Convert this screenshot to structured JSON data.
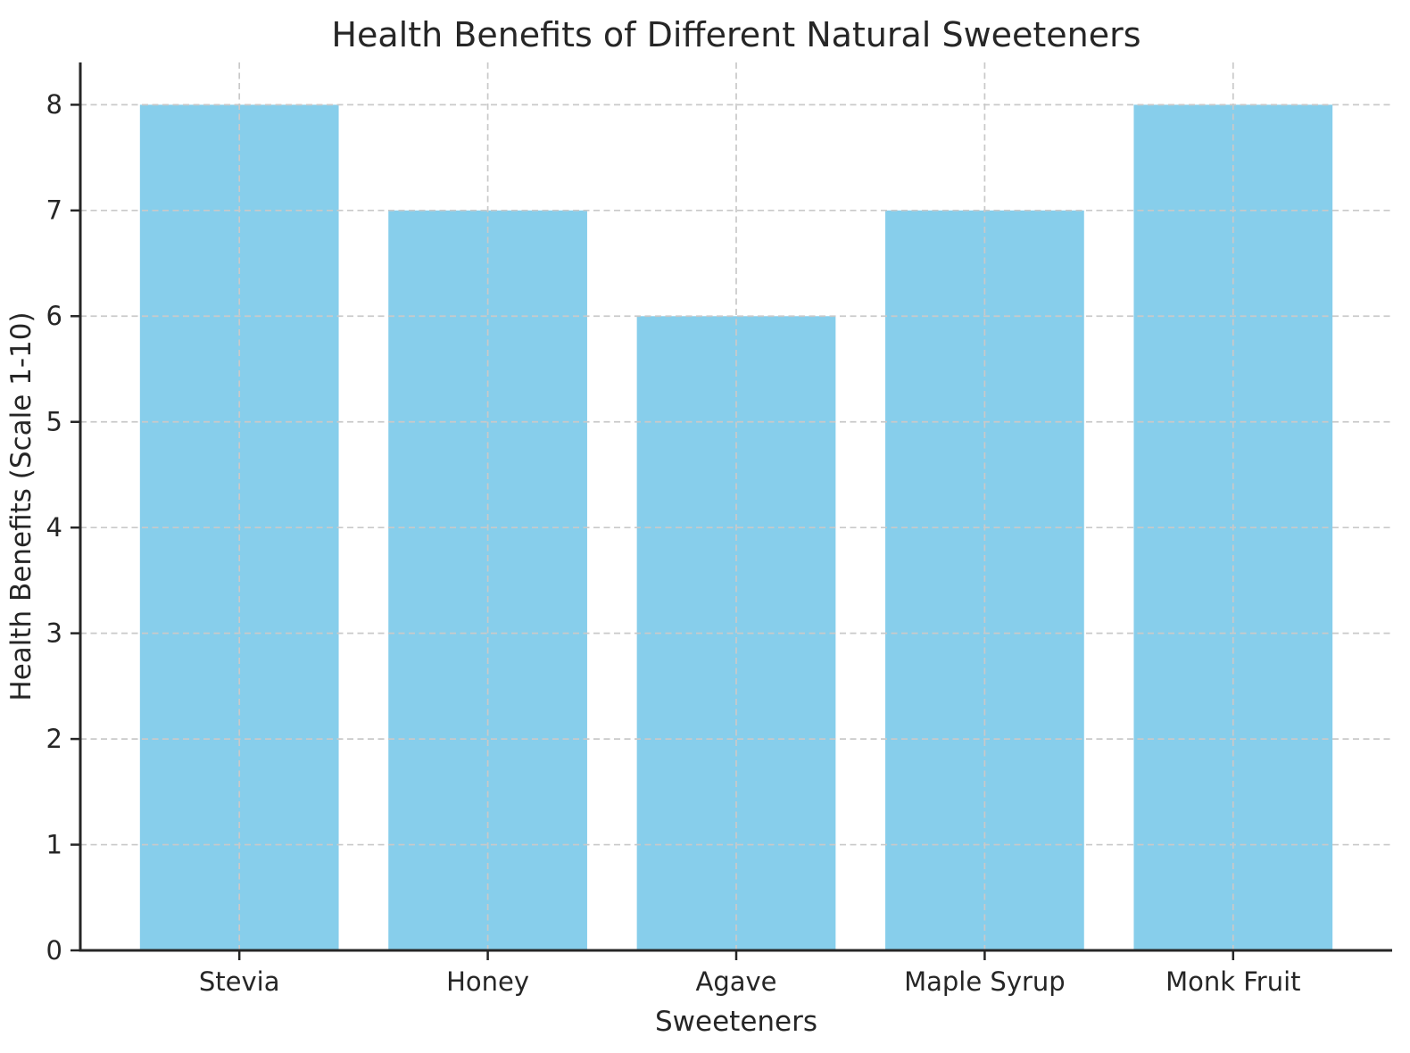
{
  "chart_data": {
    "type": "bar",
    "title": "Health Benefits of Different Natural Sweeteners",
    "xlabel": "Sweeteners",
    "ylabel": "Health Benefits (Scale 1-10)",
    "categories": [
      "Stevia",
      "Honey",
      "Agave",
      "Maple Syrup",
      "Monk Fruit"
    ],
    "values": [
      8,
      7,
      6,
      7,
      8
    ],
    "ylim": [
      0,
      8.4
    ],
    "yticks": [
      0,
      1,
      2,
      3,
      4,
      5,
      6,
      7,
      8
    ],
    "bar_width_fraction": 0.8,
    "x_range": [
      -0.64,
      4.64
    ],
    "grid": "on",
    "legend": "none",
    "colors": {
      "bar": "#87CEEB",
      "grid": "#c9c9c9",
      "spine": "#262626",
      "text": "#262626",
      "background": "#ffffff"
    }
  }
}
